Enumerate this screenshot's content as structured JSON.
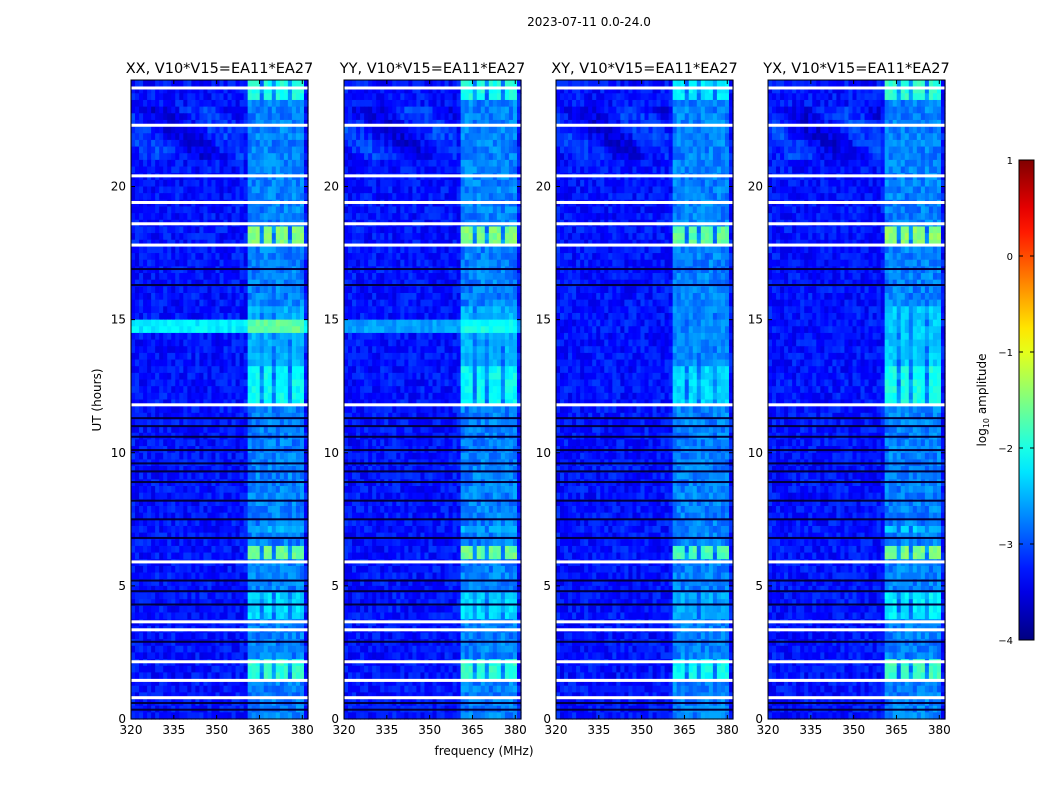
{
  "chart_data": {
    "type": "heatmap",
    "suptitle": "2023-07-11 0.0-24.0",
    "xlabel": "frequency (MHz)",
    "ylabel": "UT (hours)",
    "colorbar": {
      "label": "log10 amplitude",
      "label_main": "log",
      "label_sub": "10",
      "label_rest": " amplitude",
      "range": [
        -4,
        1
      ],
      "ticks": [
        "1",
        "0",
        "−1",
        "−2",
        "−3",
        "−4"
      ],
      "colormap": "jet"
    },
    "xlim": [
      320,
      382
    ],
    "ylim": [
      0,
      24
    ],
    "xticks": [
      "320",
      "335",
      "350",
      "365",
      "380"
    ],
    "xtick_values": [
      320,
      335,
      350,
      365,
      380
    ],
    "yticks": [
      "0",
      "5",
      "10",
      "15",
      "20"
    ],
    "ytick_values": [
      0,
      5,
      10,
      15,
      20
    ],
    "background_level": -3.3,
    "rfi_channel_bands_mhz": [
      [
        361.5,
        365.5
      ],
      [
        366.5,
        370.0
      ],
      [
        371.0,
        375.0
      ],
      [
        376.5,
        380.0
      ]
    ],
    "rfi_time_blocks_ut": [
      {
        "t0": 1.45,
        "t1": 2.25,
        "level": -1.9
      },
      {
        "t0": 3.85,
        "t1": 4.75,
        "level": -2.3
      },
      {
        "t0": 5.95,
        "t1": 6.6,
        "level": -1.6
      },
      {
        "t0": 7.0,
        "t1": 7.3,
        "level": -2.5
      },
      {
        "t0": 11.85,
        "t1": 13.3,
        "level": -2.1
      },
      {
        "t0": 13.3,
        "t1": 15.6,
        "level": -2.5
      },
      {
        "t0": 17.8,
        "t1": 18.6,
        "level": -1.5
      },
      {
        "t0": 23.3,
        "t1": 24.0,
        "level": -2.0
      }
    ],
    "flagged_gaps_ut": [
      0.8,
      1.45,
      2.15,
      3.35,
      3.65,
      5.9,
      11.8,
      17.8,
      18.6,
      19.4,
      20.4,
      22.3,
      23.7
    ],
    "dropout_lines_ut": [
      0.35,
      0.6,
      2.9,
      4.3,
      4.8,
      5.2,
      6.8,
      7.5,
      8.2,
      8.9,
      9.3,
      9.6,
      10.1,
      10.6,
      11.0,
      11.3,
      16.3,
      16.9
    ],
    "panels": [
      {
        "title": "XX, V10*V15=EA11*EA27",
        "band14_level": -2.2,
        "block_scale": 1.0
      },
      {
        "title": "YY, V10*V15=EA11*EA27",
        "band14_level": -2.6,
        "block_scale": 1.0
      },
      {
        "title": "XY, V10*V15=EA11*EA27",
        "band14_level": -3.0,
        "block_scale": 1.1
      },
      {
        "title": "YX, V10*V15=EA11*EA27",
        "band14_level": -3.0,
        "block_scale": 0.95
      }
    ]
  }
}
